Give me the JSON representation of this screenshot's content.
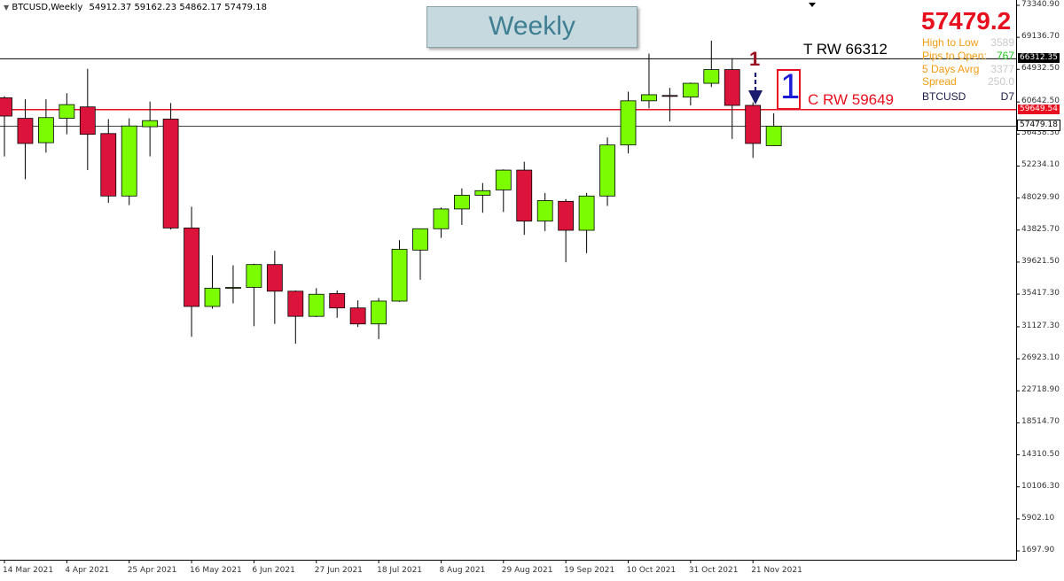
{
  "header": {
    "symbol_info": "BTCUSD,Weekly",
    "ohlc": "54912.37 59162.23 54862.17 57479.18"
  },
  "title": "Weekly",
  "info_panel": {
    "price": "57479.2",
    "rows": [
      {
        "label": "High to Low",
        "value": "3589",
        "label_color": "#f39c12",
        "value_color": "#c8c8c8"
      },
      {
        "label": "Pips to Open:",
        "value": "767",
        "label_color": "#f39c12",
        "value_color": "#22c422"
      },
      {
        "label": "5 Days Avrg",
        "value": "3377",
        "label_color": "#f39c12",
        "value_color": "#c8c8c8"
      },
      {
        "label": "Spread",
        "value": "250.0",
        "label_color": "#f39c12",
        "value_color": "#c8c8c8"
      },
      {
        "label": "BTCUSD",
        "value": "D7",
        "label_color": "#1a1a4a",
        "value_color": "#1a1a4a"
      }
    ]
  },
  "levels": {
    "t_rw": {
      "label": "T RW 66312",
      "value": 66312.35,
      "tag": "66312.35",
      "color": "#000000"
    },
    "c_rw": {
      "label": "C RW 59649",
      "value": 59649.54,
      "tag": "59649.54",
      "color": "#e8101e"
    },
    "current": {
      "value": 57479.18,
      "tag": "57479.18",
      "color": "#000000"
    }
  },
  "annotations": {
    "small_number": "1",
    "boxed_number": "1"
  },
  "colors": {
    "bull": "#7cfc00",
    "bear": "#dc143c",
    "axis": "#000000"
  },
  "chart_data": {
    "type": "candlestick",
    "title": "Weekly",
    "ylim": [
      1697.9,
      73340.9
    ],
    "y_ticks": [
      "73340.90",
      "69136.70",
      "64932.50",
      "60642.50",
      "56438.30",
      "52234.10",
      "48029.90",
      "43825.70",
      "39621.50",
      "35417.30",
      "31127.30",
      "26923.10",
      "22718.90",
      "18514.70",
      "14310.50",
      "10106.30",
      "5902.10",
      "1697.90"
    ],
    "x_ticks": [
      "14 Mar 2021",
      "4 Apr 2021",
      "25 Apr 2021",
      "16 May 2021",
      "6 Jun 2021",
      "27 Jun 2021",
      "18 Jul 2021",
      "8 Aug 2021",
      "29 Aug 2021",
      "19 Sep 2021",
      "10 Oct 2021",
      "31 Oct 2021",
      "21 Nov 2021"
    ],
    "candles": [
      {
        "o": 61200,
        "h": 61400,
        "l": 53500,
        "c": 58800
      },
      {
        "o": 58500,
        "h": 61000,
        "l": 50500,
        "c": 55200
      },
      {
        "o": 55300,
        "h": 61000,
        "l": 54000,
        "c": 58600
      },
      {
        "o": 58500,
        "h": 61800,
        "l": 56400,
        "c": 60300
      },
      {
        "o": 60000,
        "h": 65000,
        "l": 51700,
        "c": 56400
      },
      {
        "o": 56500,
        "h": 58400,
        "l": 47400,
        "c": 48300
      },
      {
        "o": 48300,
        "h": 58500,
        "l": 47100,
        "c": 57500
      },
      {
        "o": 57400,
        "h": 60700,
        "l": 53500,
        "c": 58200
      },
      {
        "o": 58400,
        "h": 60500,
        "l": 43900,
        "c": 44100
      },
      {
        "o": 44100,
        "h": 46900,
        "l": 29800,
        "c": 33800
      },
      {
        "o": 33800,
        "h": 40500,
        "l": 33500,
        "c": 36200
      },
      {
        "o": 36300,
        "h": 39200,
        "l": 34200,
        "c": 36300
      },
      {
        "o": 36300,
        "h": 39400,
        "l": 31200,
        "c": 39300
      },
      {
        "o": 39300,
        "h": 41100,
        "l": 31500,
        "c": 35800
      },
      {
        "o": 35800,
        "h": 35900,
        "l": 28900,
        "c": 32500
      },
      {
        "o": 32500,
        "h": 36200,
        "l": 32400,
        "c": 35400
      },
      {
        "o": 35500,
        "h": 35900,
        "l": 32300,
        "c": 33600
      },
      {
        "o": 33600,
        "h": 34600,
        "l": 31100,
        "c": 31500
      },
      {
        "o": 31500,
        "h": 34900,
        "l": 29500,
        "c": 34500
      },
      {
        "o": 34500,
        "h": 42500,
        "l": 34400,
        "c": 41300
      },
      {
        "o": 41200,
        "h": 43500,
        "l": 37300,
        "c": 44000
      },
      {
        "o": 44000,
        "h": 46800,
        "l": 42800,
        "c": 46600
      },
      {
        "o": 46600,
        "h": 49300,
        "l": 44500,
        "c": 48400
      },
      {
        "o": 48400,
        "h": 50000,
        "l": 46100,
        "c": 49000
      },
      {
        "o": 49100,
        "h": 51800,
        "l": 46200,
        "c": 51700
      },
      {
        "o": 51700,
        "h": 52800,
        "l": 43200,
        "c": 45000
      },
      {
        "o": 45000,
        "h": 48700,
        "l": 43700,
        "c": 47700
      },
      {
        "o": 47600,
        "h": 47900,
        "l": 39600,
        "c": 43800
      },
      {
        "o": 43800,
        "h": 48700,
        "l": 40800,
        "c": 48300
      },
      {
        "o": 48300,
        "h": 56000,
        "l": 47000,
        "c": 55000
      },
      {
        "o": 55000,
        "h": 62000,
        "l": 53900,
        "c": 60800
      },
      {
        "o": 60800,
        "h": 67000,
        "l": 59800,
        "c": 61600
      },
      {
        "o": 61500,
        "h": 62500,
        "l": 58100,
        "c": 61400
      },
      {
        "o": 61300,
        "h": 63200,
        "l": 60200,
        "c": 63100
      },
      {
        "o": 63100,
        "h": 68700,
        "l": 62600,
        "c": 64900
      },
      {
        "o": 64900,
        "h": 66400,
        "l": 55800,
        "c": 60200
      },
      {
        "o": 60200,
        "h": 60600,
        "l": 53300,
        "c": 55200
      },
      {
        "o": 54912.37,
        "h": 59162.23,
        "l": 54862.17,
        "c": 57479.18
      }
    ]
  }
}
